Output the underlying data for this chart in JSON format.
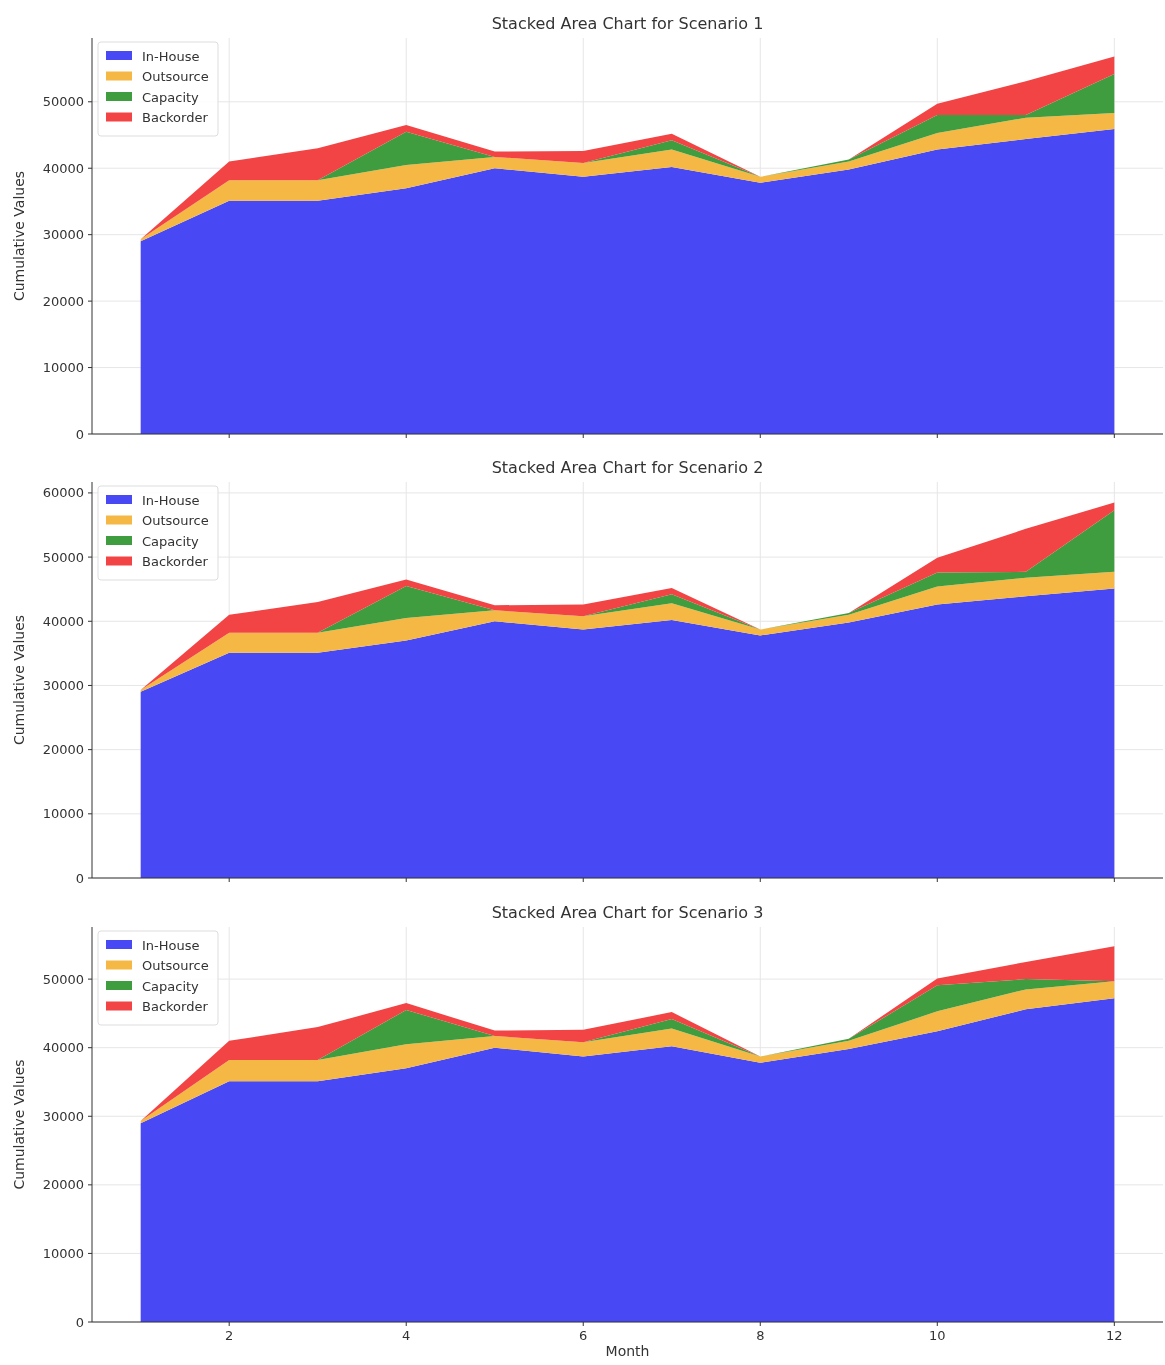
{
  "chart_data": [
    {
      "type": "area",
      "stacked": true,
      "title": "Stacked Area Chart for Scenario 1",
      "ylabel": "Cumulative Values",
      "x": [
        1,
        2,
        3,
        4,
        5,
        6,
        7,
        8,
        9,
        10,
        11,
        12
      ],
      "xlim": [
        0.45,
        12.55
      ],
      "xticks": [
        2,
        4,
        6,
        8,
        10,
        12
      ],
      "ylim": [
        0,
        59600
      ],
      "yticks": [
        0,
        10000,
        20000,
        30000,
        40000,
        50000
      ],
      "grid": true,
      "legend": "top left",
      "tick_labels": "y",
      "series": [
        {
          "name": "In-House",
          "color": "#4848f4",
          "values": [
            29000,
            35100,
            35100,
            37000,
            40000,
            38700,
            40200,
            37800,
            39800,
            42800,
            44400,
            45900
          ]
        },
        {
          "name": "Outsource",
          "color": "#f6b844",
          "values": [
            300,
            3100,
            3100,
            3500,
            1700,
            2100,
            2600,
            900,
            1200,
            2500,
            3200,
            2400
          ]
        },
        {
          "name": "Capacity",
          "color": "#3f9d3f",
          "values": [
            0,
            0,
            0,
            5000,
            0,
            0,
            1400,
            0,
            300,
            2700,
            400,
            5900
          ]
        },
        {
          "name": "Backorder",
          "color": "#f24444",
          "values": [
            0,
            2800,
            4800,
            1000,
            800,
            1800,
            1000,
            0,
            0,
            1700,
            5100,
            2600
          ]
        }
      ]
    },
    {
      "type": "area",
      "stacked": true,
      "title": "Stacked Area Chart for Scenario 2",
      "ylabel": "Cumulative Values",
      "x": [
        1,
        2,
        3,
        4,
        5,
        6,
        7,
        8,
        9,
        10,
        11,
        12
      ],
      "xlim": [
        0.45,
        12.55
      ],
      "xticks": [
        2,
        4,
        6,
        8,
        10,
        12
      ],
      "ylim": [
        0,
        61700
      ],
      "yticks": [
        0,
        10000,
        20000,
        30000,
        40000,
        50000,
        60000
      ],
      "grid": true,
      "legend": "top left",
      "tick_labels": "y",
      "series": [
        {
          "name": "In-House",
          "color": "#4848f4",
          "values": [
            29000,
            35100,
            35100,
            37000,
            40000,
            38700,
            40200,
            37800,
            39800,
            42600,
            43900,
            45100
          ]
        },
        {
          "name": "Outsource",
          "color": "#f6b844",
          "values": [
            300,
            3100,
            3100,
            3500,
            1700,
            2100,
            2600,
            900,
            1200,
            2800,
            2900,
            2600
          ]
        },
        {
          "name": "Capacity",
          "color": "#3f9d3f",
          "values": [
            0,
            0,
            0,
            5000,
            0,
            0,
            1400,
            0,
            300,
            2200,
            900,
            9600
          ]
        },
        {
          "name": "Backorder",
          "color": "#f24444",
          "values": [
            0,
            2800,
            4800,
            1000,
            800,
            1800,
            1000,
            0,
            0,
            2300,
            6700,
            1200
          ]
        }
      ]
    },
    {
      "type": "area",
      "stacked": true,
      "title": "Stacked Area Chart for Scenario 3",
      "xlabel": "Month",
      "ylabel": "Cumulative Values",
      "x": [
        1,
        2,
        3,
        4,
        5,
        6,
        7,
        8,
        9,
        10,
        11,
        12
      ],
      "xlim": [
        0.45,
        12.55
      ],
      "xticks": [
        2,
        4,
        6,
        8,
        10,
        12
      ],
      "ylim": [
        0,
        57600
      ],
      "yticks": [
        0,
        10000,
        20000,
        30000,
        40000,
        50000
      ],
      "grid": true,
      "legend": "top left",
      "series": [
        {
          "name": "In-House",
          "color": "#4848f4",
          "values": [
            29000,
            35100,
            35100,
            37000,
            40000,
            38700,
            40200,
            37800,
            39800,
            42400,
            45600,
            47200
          ]
        },
        {
          "name": "Outsource",
          "color": "#f6b844",
          "values": [
            300,
            3100,
            3100,
            3500,
            1700,
            2100,
            2600,
            900,
            1200,
            2900,
            2900,
            2500
          ]
        },
        {
          "name": "Capacity",
          "color": "#3f9d3f",
          "values": [
            0,
            0,
            0,
            5000,
            0,
            0,
            1400,
            0,
            300,
            3800,
            1500,
            0
          ]
        },
        {
          "name": "Backorder",
          "color": "#f24444",
          "values": [
            0,
            2800,
            4800,
            1000,
            800,
            1800,
            1000,
            0,
            0,
            1000,
            2500,
            5100
          ]
        }
      ]
    }
  ]
}
